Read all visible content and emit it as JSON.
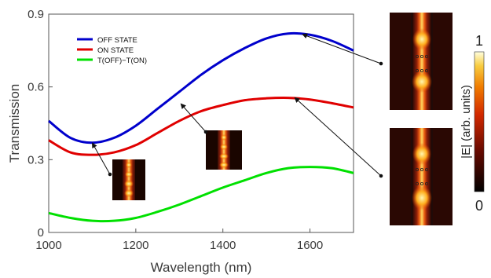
{
  "chart_data": {
    "type": "line",
    "xlabel": "Wavelength (nm)",
    "ylabel": "Transmission",
    "xlim": [
      1000,
      1700
    ],
    "ylim": [
      0,
      0.9
    ],
    "xticks": [
      "1000",
      "1200",
      "1400",
      "1600"
    ],
    "yticks": [
      "0",
      "0.3",
      "0.6",
      "0.9"
    ],
    "grid": false,
    "legend_position": "top-left",
    "series": [
      {
        "name": "OFF STATE",
        "color": "#0000cc",
        "x": [
          1000,
          1050,
          1100,
          1150,
          1200,
          1250,
          1300,
          1350,
          1400,
          1450,
          1500,
          1550,
          1600,
          1650,
          1700
        ],
        "y": [
          0.46,
          0.39,
          0.37,
          0.39,
          0.44,
          0.51,
          0.58,
          0.65,
          0.71,
          0.76,
          0.8,
          0.82,
          0.815,
          0.79,
          0.75
        ]
      },
      {
        "name": "ON STATE",
        "color": "#e00000",
        "x": [
          1000,
          1050,
          1100,
          1150,
          1200,
          1250,
          1300,
          1350,
          1400,
          1450,
          1500,
          1550,
          1600,
          1650,
          1700
        ],
        "y": [
          0.38,
          0.33,
          0.32,
          0.33,
          0.36,
          0.41,
          0.46,
          0.5,
          0.525,
          0.545,
          0.553,
          0.555,
          0.548,
          0.533,
          0.515
        ]
      },
      {
        "name": "T(OFF)−T(ON)",
        "color": "#00e000",
        "x": [
          1000,
          1050,
          1100,
          1150,
          1200,
          1250,
          1300,
          1350,
          1400,
          1450,
          1500,
          1550,
          1600,
          1650,
          1700
        ],
        "y": [
          0.08,
          0.06,
          0.048,
          0.048,
          0.06,
          0.085,
          0.115,
          0.15,
          0.185,
          0.215,
          0.245,
          0.265,
          0.27,
          0.265,
          0.245
        ]
      }
    ],
    "colorbar": {
      "label": "|E| (arb. units)",
      "max_label": "1",
      "min_label": "0"
    }
  }
}
